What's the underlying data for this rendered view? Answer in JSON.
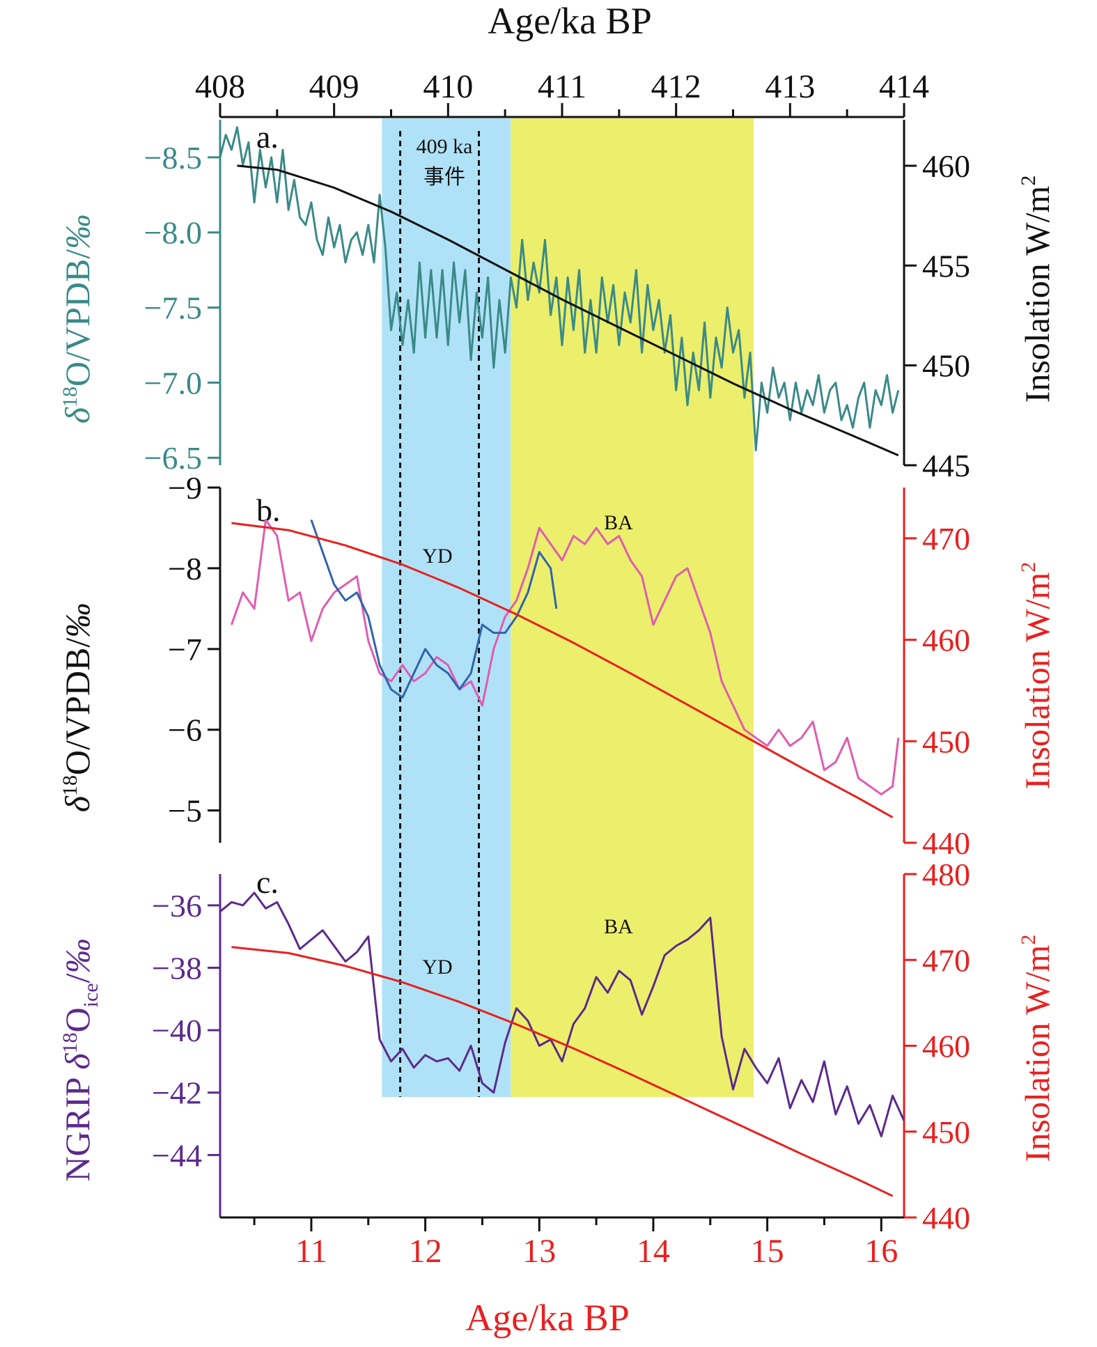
{
  "colors": {
    "teal": "#3a8a88",
    "black": "#111111",
    "blue": "#2f64ad",
    "pink": "#e05cb0",
    "red": "#e8201f",
    "purple": "#5b2a8c",
    "cyan_band": "#b0e2f7",
    "yellow_band": "#ecef6b"
  },
  "top_axis": {
    "label": "Age/ka BP",
    "ticks": [
      "408",
      "409",
      "410",
      "411",
      "412",
      "413",
      "414"
    ]
  },
  "bottom_axis": {
    "label": "Age/ka BP",
    "ticks": [
      "11",
      "12",
      "13",
      "14",
      "15",
      "16"
    ]
  },
  "shading": {
    "cyan_band_ka_bp": [
      11.62,
      12.75
    ],
    "yellow_band_ka_bp": [
      12.75,
      14.88
    ],
    "dashed_lines_ka_bp": [
      11.78,
      12.47
    ]
  },
  "chart_data": [
    {
      "type": "line",
      "panel_label": "a.",
      "annotation": "409 ka\n事件",
      "annotation_line1": "409 ka",
      "annotation_line2": "事件",
      "x_axis": {
        "label": "Age/ka BP",
        "range": [
          408,
          414
        ]
      },
      "y_left": {
        "label": "δ18O/VPDB/‰",
        "ticks": [
          "−8.5",
          "−8.0",
          "−7.5",
          "−7.0",
          "−6.5"
        ],
        "range": [
          -8.75,
          -6.45
        ],
        "inverted": true
      },
      "y_right": {
        "label": "Insolation W/m2",
        "ticks": [
          "460",
          "455",
          "450",
          "445"
        ],
        "range": [
          445,
          462.3
        ]
      },
      "series": [
        {
          "axis": "left",
          "color": "#3a8a88",
          "x": [
            408.0,
            408.05,
            408.1,
            408.15,
            408.2,
            408.25,
            408.3,
            408.35,
            408.4,
            408.45,
            408.5,
            408.55,
            408.6,
            408.65,
            408.7,
            408.75,
            408.8,
            408.85,
            408.9,
            408.95,
            409.0,
            409.05,
            409.1,
            409.15,
            409.2,
            409.25,
            409.3,
            409.35,
            409.4,
            409.45,
            409.5,
            409.55,
            409.6,
            409.65,
            409.7,
            409.75,
            409.8,
            409.85,
            409.9,
            409.95,
            410.0,
            410.05,
            410.1,
            410.15,
            410.2,
            410.25,
            410.3,
            410.35,
            410.4,
            410.45,
            410.5,
            410.55,
            410.6,
            410.65,
            410.7,
            410.75,
            410.8,
            410.85,
            410.9,
            410.95,
            411.0,
            411.05,
            411.1,
            411.15,
            411.2,
            411.25,
            411.3,
            411.35,
            411.4,
            411.45,
            411.5,
            411.55,
            411.6,
            411.65,
            411.7,
            411.75,
            411.8,
            411.85,
            411.9,
            411.95,
            412.0,
            412.05,
            412.1,
            412.15,
            412.2,
            412.25,
            412.3,
            412.35,
            412.4,
            412.45,
            412.5,
            412.55,
            412.6,
            412.65,
            412.7,
            412.75,
            412.8,
            412.85,
            412.9,
            412.95,
            413.0,
            413.05,
            413.1,
            413.15,
            413.2,
            413.25,
            413.3,
            413.35,
            413.4,
            413.45,
            413.5,
            413.55,
            413.6,
            413.65,
            413.7,
            413.75,
            413.8,
            413.85,
            413.9,
            413.95
          ],
          "y": [
            -8.5,
            -8.65,
            -8.55,
            -8.7,
            -8.45,
            -8.6,
            -8.2,
            -8.55,
            -8.3,
            -8.5,
            -8.2,
            -8.55,
            -8.15,
            -8.35,
            -8.1,
            -8.05,
            -8.2,
            -7.95,
            -7.85,
            -8.1,
            -7.9,
            -8.05,
            -7.8,
            -7.95,
            -8.0,
            -7.85,
            -8.05,
            -7.8,
            -8.25,
            -7.9,
            -7.35,
            -7.6,
            -7.25,
            -7.55,
            -7.2,
            -7.8,
            -7.3,
            -7.75,
            -7.3,
            -7.75,
            -7.25,
            -7.8,
            -7.4,
            -7.75,
            -7.15,
            -7.6,
            -7.3,
            -7.7,
            -7.1,
            -7.55,
            -7.2,
            -7.7,
            -7.5,
            -7.95,
            -7.55,
            -7.8,
            -7.6,
            -7.95,
            -7.45,
            -7.7,
            -7.25,
            -7.7,
            -7.35,
            -7.75,
            -7.2,
            -7.55,
            -7.2,
            -7.7,
            -7.4,
            -7.65,
            -7.25,
            -7.6,
            -7.4,
            -7.75,
            -7.2,
            -7.65,
            -7.35,
            -7.55,
            -7.2,
            -7.45,
            -6.95,
            -7.3,
            -6.85,
            -7.2,
            -6.95,
            -7.4,
            -6.9,
            -7.3,
            -7.1,
            -7.5,
            -7.2,
            -7.35,
            -6.9,
            -7.2,
            -6.55,
            -7.0,
            -6.8,
            -7.1,
            -6.9,
            -7.0,
            -6.75,
            -7.0,
            -6.8,
            -6.95,
            -6.85,
            -7.05,
            -6.8,
            -6.95,
            -7.0,
            -6.75,
            -6.85,
            -6.7,
            -6.9,
            -7.0,
            -6.7,
            -6.95,
            -6.85,
            -7.05,
            -6.8,
            -6.95
          ]
        },
        {
          "axis": "right",
          "color": "#111111",
          "x": [
            408.15,
            408.5,
            409.0,
            409.5,
            410.0,
            410.5,
            411.0,
            411.5,
            412.0,
            412.5,
            413.0,
            413.5,
            413.95
          ],
          "y": [
            460.0,
            459.8,
            458.9,
            457.7,
            456.3,
            454.8,
            453.3,
            451.9,
            450.5,
            449.1,
            447.8,
            446.6,
            445.5
          ]
        }
      ]
    },
    {
      "type": "line",
      "panel_label": "b.",
      "labels": [
        "YD",
        "BA"
      ],
      "x_axis": {
        "label": "Age/ka BP",
        "range": [
          10.2,
          16.2
        ]
      },
      "y_left": {
        "label": "δ18O/VPDB/‰",
        "ticks": [
          "−9",
          "−8",
          "−7",
          "−6",
          "−5"
        ],
        "range": [
          -9.0,
          -4.6
        ],
        "inverted": true
      },
      "y_right": {
        "label": "Insolation W/m2",
        "ticks": [
          "470",
          "460",
          "450",
          "440"
        ],
        "range": [
          440.0,
          475.0
        ]
      },
      "series": [
        {
          "axis": "left",
          "color": "#e05cb0",
          "x": [
            10.3,
            10.4,
            10.5,
            10.6,
            10.7,
            10.8,
            10.9,
            11.0,
            11.1,
            11.2,
            11.3,
            11.4,
            11.5,
            11.6,
            11.7,
            11.8,
            11.9,
            12.0,
            12.1,
            12.2,
            12.3,
            12.4,
            12.5,
            12.6,
            12.7,
            12.8,
            12.9,
            13.0,
            13.1,
            13.2,
            13.3,
            13.4,
            13.5,
            13.6,
            13.7,
            13.8,
            13.9,
            14.0,
            14.1,
            14.2,
            14.3,
            14.4,
            14.5,
            14.6,
            14.7,
            14.8,
            14.9,
            15.0,
            15.1,
            15.2,
            15.3,
            15.4,
            15.5,
            15.6,
            15.7,
            15.8,
            15.9,
            16.0,
            16.1,
            16.15
          ],
          "y": [
            -7.3,
            -7.7,
            -7.5,
            -8.6,
            -8.4,
            -7.6,
            -7.7,
            -7.1,
            -7.5,
            -7.7,
            -7.8,
            -7.9,
            -7.1,
            -6.7,
            -6.6,
            -6.8,
            -6.6,
            -6.7,
            -6.9,
            -6.8,
            -6.5,
            -6.6,
            -6.3,
            -7.0,
            -7.4,
            -7.6,
            -8.0,
            -8.5,
            -8.3,
            -8.1,
            -8.4,
            -8.3,
            -8.5,
            -8.3,
            -8.4,
            -8.1,
            -7.9,
            -7.3,
            -7.6,
            -7.9,
            -8.0,
            -7.6,
            -7.2,
            -6.6,
            -6.3,
            -6.0,
            -5.9,
            -5.8,
            -6.0,
            -5.8,
            -5.9,
            -6.1,
            -5.5,
            -5.6,
            -5.9,
            -5.4,
            -5.3,
            -5.2,
            -5.3,
            -5.9
          ]
        },
        {
          "axis": "left",
          "color": "#2f64ad",
          "x": [
            11.0,
            11.1,
            11.2,
            11.3,
            11.4,
            11.5,
            11.6,
            11.7,
            11.8,
            11.9,
            12.0,
            12.1,
            12.2,
            12.3,
            12.4,
            12.5,
            12.6,
            12.7,
            12.8,
            12.9,
            13.0,
            13.1,
            13.15
          ],
          "y": [
            -8.6,
            -8.2,
            -7.8,
            -7.6,
            -7.7,
            -7.4,
            -6.8,
            -6.5,
            -6.4,
            -6.7,
            -7.0,
            -6.8,
            -6.7,
            -6.5,
            -6.7,
            -7.3,
            -7.2,
            -7.2,
            -7.4,
            -7.7,
            -8.2,
            -8.0,
            -7.5
          ]
        },
        {
          "axis": "right",
          "color": "#e8201f",
          "x": [
            10.3,
            10.8,
            11.3,
            11.8,
            12.3,
            12.8,
            13.3,
            13.8,
            14.3,
            14.8,
            15.3,
            15.8,
            16.1
          ],
          "y": [
            471.5,
            470.8,
            469.3,
            467.4,
            465.1,
            462.5,
            459.7,
            456.7,
            453.6,
            450.5,
            447.4,
            444.4,
            442.5
          ]
        }
      ]
    },
    {
      "type": "line",
      "panel_label": "c.",
      "labels": [
        "YD",
        "BA"
      ],
      "x_axis": {
        "label": "Age/ka BP",
        "ticks": [
          "11",
          "12",
          "13",
          "14",
          "15",
          "16"
        ],
        "range": [
          10.2,
          16.2
        ]
      },
      "y_left": {
        "label": "NGRIP δ18Oice/‰",
        "ticks": [
          "−36",
          "−38",
          "−40",
          "−42",
          "−44"
        ],
        "range": [
          -46.0,
          -35.0
        ]
      },
      "y_right": {
        "label": "Insolation W/m2",
        "ticks": [
          "480",
          "470",
          "460",
          "450",
          "440"
        ],
        "range": [
          440.0,
          480.0
        ]
      },
      "series": [
        {
          "axis": "left",
          "color": "#5b2a8c",
          "x": [
            10.2,
            10.3,
            10.4,
            10.5,
            10.6,
            10.7,
            10.8,
            10.9,
            11.0,
            11.1,
            11.2,
            11.3,
            11.4,
            11.5,
            11.6,
            11.7,
            11.8,
            11.9,
            12.0,
            12.1,
            12.2,
            12.3,
            12.4,
            12.5,
            12.6,
            12.7,
            12.8,
            12.9,
            13.0,
            13.1,
            13.2,
            13.3,
            13.4,
            13.5,
            13.6,
            13.7,
            13.8,
            13.9,
            14.0,
            14.1,
            14.2,
            14.3,
            14.4,
            14.5,
            14.6,
            14.7,
            14.8,
            14.9,
            15.0,
            15.1,
            15.2,
            15.3,
            15.4,
            15.5,
            15.6,
            15.7,
            15.8,
            15.9,
            16.0,
            16.1,
            16.2
          ],
          "y": [
            -36.2,
            -35.9,
            -36.0,
            -35.6,
            -36.1,
            -35.9,
            -36.6,
            -37.4,
            -37.1,
            -36.8,
            -37.3,
            -37.8,
            -37.5,
            -37.0,
            -40.3,
            -41.0,
            -40.6,
            -41.2,
            -40.8,
            -41.0,
            -40.9,
            -41.3,
            -40.5,
            -41.7,
            -42.0,
            -40.4,
            -39.3,
            -39.7,
            -40.5,
            -40.3,
            -41.0,
            -39.8,
            -39.3,
            -38.3,
            -38.8,
            -38.1,
            -38.4,
            -39.5,
            -38.6,
            -37.6,
            -37.3,
            -37.1,
            -36.8,
            -36.4,
            -40.2,
            -41.9,
            -40.6,
            -41.2,
            -41.7,
            -40.9,
            -42.5,
            -41.6,
            -42.3,
            -41.0,
            -42.7,
            -41.8,
            -43.0,
            -42.4,
            -43.4,
            -42.1,
            -42.9
          ]
        },
        {
          "axis": "right",
          "color": "#e8201f",
          "x": [
            10.3,
            10.8,
            11.3,
            11.8,
            12.3,
            12.8,
            13.3,
            13.8,
            14.3,
            14.8,
            15.3,
            15.8,
            16.1
          ],
          "y": [
            471.5,
            470.8,
            469.3,
            467.4,
            465.1,
            462.5,
            459.7,
            456.7,
            453.6,
            450.5,
            447.4,
            444.4,
            442.5
          ]
        }
      ]
    }
  ]
}
